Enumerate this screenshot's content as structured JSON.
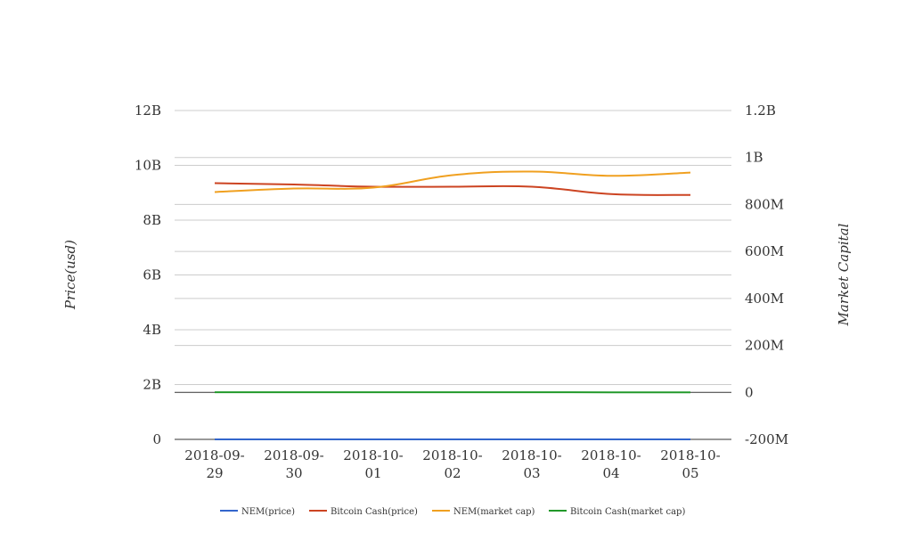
{
  "chart_data": {
    "type": "line",
    "categories": [
      "2018-09-29",
      "2018-09-30",
      "2018-10-01",
      "2018-10-02",
      "2018-10-03",
      "2018-10-04",
      "2018-10-05"
    ],
    "x_tick_labels": [
      [
        "2018-09-",
        "29"
      ],
      [
        "2018-09-",
        "30"
      ],
      [
        "2018-10-",
        "01"
      ],
      [
        "2018-10-",
        "02"
      ],
      [
        "2018-10-",
        "03"
      ],
      [
        "2018-10-",
        "04"
      ],
      [
        "2018-10-",
        "05"
      ]
    ],
    "y_left": {
      "label": "Price(usd)",
      "ylim": [
        0,
        12000000000
      ],
      "ticks": [
        0,
        2000000000,
        4000000000,
        6000000000,
        8000000000,
        10000000000,
        12000000000
      ],
      "tick_labels": [
        "0",
        "2B",
        "4B",
        "6B",
        "8B",
        "10B",
        "12B"
      ]
    },
    "y_right": {
      "label": "Market Capital",
      "ylim": [
        -200000000,
        1200000000
      ],
      "ticks": [
        -200000000,
        0,
        200000000,
        400000000,
        600000000,
        800000000,
        1000000000,
        1200000000
      ],
      "tick_labels": [
        "-200M",
        "0",
        "200M",
        "400M",
        "600M",
        "800M",
        "1B",
        "1.2B"
      ]
    },
    "grid": true,
    "legend_position": "bottom",
    "series": [
      {
        "name": "NEM(price)",
        "axis": "left",
        "color": "#3366cc",
        "values": [
          0.11,
          0.11,
          0.1,
          0.1,
          0.1,
          0.1,
          0.1
        ]
      },
      {
        "name": "Bitcoin Cash(price)",
        "axis": "left",
        "color": "#cc4422",
        "values": [
          9350000000,
          9300000000,
          9220000000,
          9220000000,
          9220000000,
          8950000000,
          8920000000
        ]
      },
      {
        "name": "NEM(market cap)",
        "axis": "right",
        "color": "#f0a020",
        "values": [
          853000000,
          868000000,
          872000000,
          925000000,
          940000000,
          922000000,
          936000000
        ]
      },
      {
        "name": "Bitcoin Cash(market cap)",
        "axis": "right",
        "color": "#22992a",
        "values": [
          500000,
          500000,
          700000,
          500000,
          500000,
          300000,
          300000
        ]
      }
    ]
  }
}
